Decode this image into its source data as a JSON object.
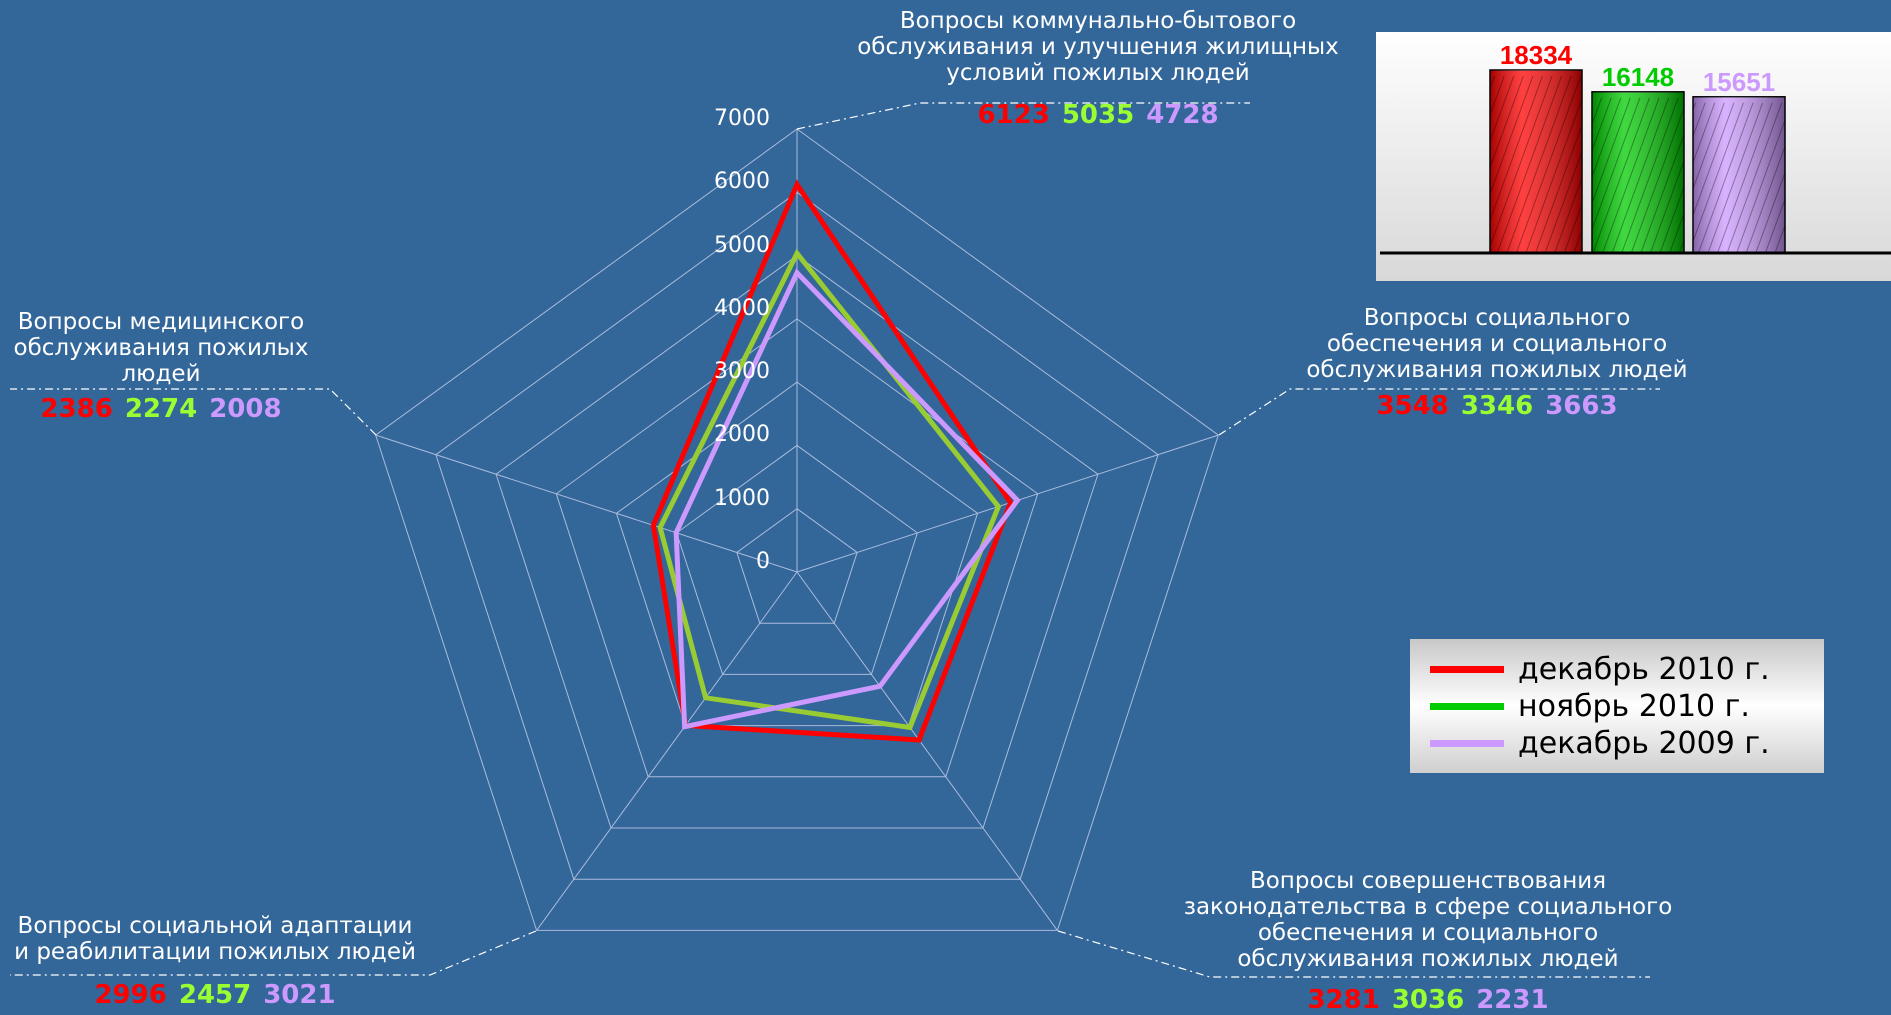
{
  "chart_data": [
    {
      "type": "radar",
      "rmax": 7000,
      "ticks": [
        0,
        1000,
        2000,
        3000,
        4000,
        5000,
        6000,
        7000
      ],
      "categories": [
        "Вопросы коммунально-бытового\nобслуживания и улучшения жилищных\nусловий пожилых людей",
        "Вопросы социального\nобеспечения и социального\nобслуживания пожилых людей",
        "Вопросы совершенствования\nзаконодательства в сфере социального\nобеспечения и социального\nобслуживания пожилых людей",
        "Вопросы социальной адаптации\nи реабилитации пожилых людей",
        "Вопросы медицинского\nобслуживания пожилых\nлюдей"
      ],
      "series": [
        {
          "name": "декабрь 2010 г.",
          "color": "#ff0000",
          "values": [
            6123,
            3548,
            3281,
            2996,
            2386
          ]
        },
        {
          "name": "ноябрь 2010 г.",
          "color": "#99cc33",
          "values": [
            5035,
            3346,
            3036,
            2457,
            2274
          ]
        },
        {
          "name": "декабрь 2009 г.",
          "color": "#cc99ff",
          "values": [
            4728,
            3663,
            2231,
            3021,
            2008
          ]
        }
      ],
      "legend_position": "right"
    },
    {
      "type": "bar",
      "categories": [
        "декабрь 2010 г.",
        "ноябрь 2010 г.",
        "декабрь 2009 г."
      ],
      "values": [
        18334,
        16148,
        15651
      ],
      "colors": [
        "#ff0000",
        "#00cc00",
        "#cc99ff"
      ]
    }
  ]
}
